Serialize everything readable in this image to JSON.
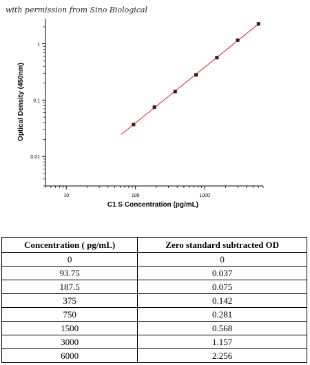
{
  "note": "with permission from Sino Biological",
  "colors": {
    "line": "#e02020",
    "marker": "#3a1a1a",
    "axis": "#000000"
  },
  "chart_data": {
    "type": "scatter",
    "title": "",
    "xlabel": "C1 S Concentration (pg/mL)",
    "ylabel": "Optical Density (450nm)",
    "xscale": "log",
    "yscale": "log",
    "xlim": [
      5,
      7000
    ],
    "ylim": [
      0.003,
      2.8
    ],
    "xticks": [
      {
        "value": 10,
        "label": "10"
      },
      {
        "value": 100,
        "label": "100"
      },
      {
        "value": 1000,
        "label": "1000"
      }
    ],
    "yticks": [
      {
        "value": 0.01,
        "label": "0.01"
      },
      {
        "value": 0.1,
        "label": "0.1"
      },
      {
        "value": 1,
        "label": "1"
      }
    ],
    "grid": false,
    "points": {
      "x": [
        93.75,
        187.5,
        375,
        750,
        1500,
        3000,
        6000
      ],
      "y": [
        0.037,
        0.075,
        0.142,
        0.281,
        0.568,
        1.157,
        2.256
      ]
    },
    "fit_line": {
      "x": [
        62,
        6000
      ],
      "y": [
        0.0245,
        2.256
      ]
    }
  },
  "table": {
    "headers": [
      "Concentration ( pg/mL)",
      "Zero standard subtracted OD"
    ],
    "rows": [
      [
        "0",
        "0"
      ],
      [
        "93.75",
        "0.037"
      ],
      [
        "187.5",
        "0.075"
      ],
      [
        "375",
        "0.142"
      ],
      [
        "750",
        "0.281"
      ],
      [
        "1500",
        "0.568"
      ],
      [
        "3000",
        "1.157"
      ],
      [
        "6000",
        "2.256"
      ]
    ]
  }
}
